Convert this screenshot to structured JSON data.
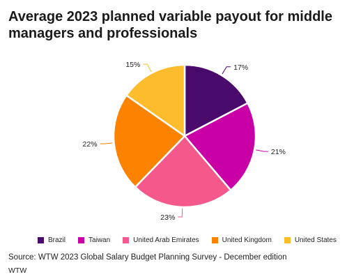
{
  "title": "Average 2023 planned variable payout for middle managers and professionals",
  "source": "Source: WTW 2023 Global Salary Budget Planning Survey - December edition",
  "credit": "WTW",
  "chart_data": {
    "type": "pie",
    "title": "Average 2023 planned variable payout for middle managers and professionals",
    "legend_position": "bottom",
    "categories": [
      "Brazil",
      "Taiwan",
      "United Arab Emirates",
      "United Kingdom",
      "United States"
    ],
    "values": [
      17,
      21,
      23,
      22,
      15
    ],
    "labels": [
      "17%",
      "21%",
      "23%",
      "22%",
      "15%"
    ],
    "colors": [
      "#4a0a6b",
      "#c800a6",
      "#f5588a",
      "#fb8300",
      "#fdbc2c"
    ]
  }
}
